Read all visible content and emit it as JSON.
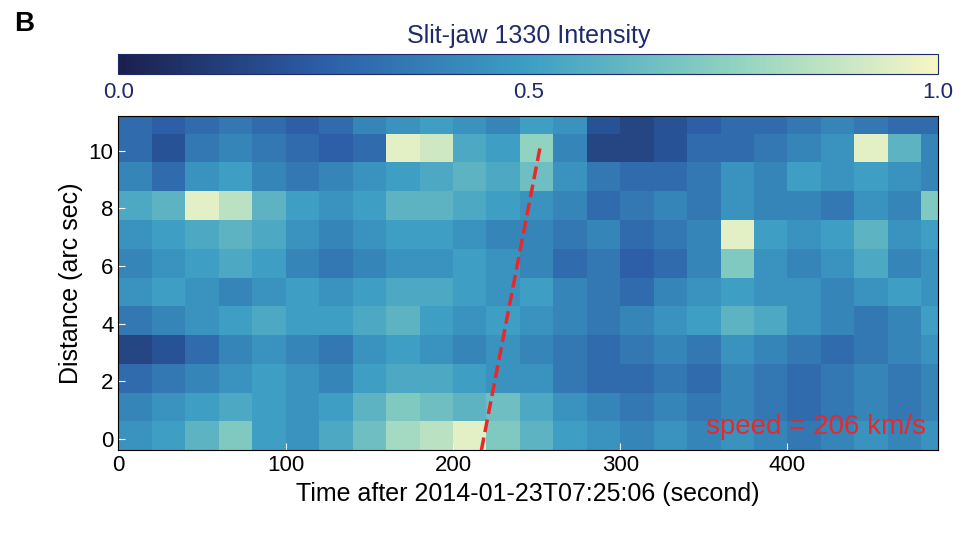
{
  "chart_data": {
    "type": "heatmap",
    "panel_label": "B",
    "xlabel": "Time after 2014-01-23T07:25:06 (second)",
    "ylabel": "Distance (arc sec)",
    "xlim": [
      0,
      490
    ],
    "ylim": [
      -0.4,
      11.2
    ],
    "xticks": [
      0,
      100,
      200,
      300,
      400
    ],
    "yticks": [
      0,
      2,
      4,
      6,
      8,
      10
    ],
    "x_edges": [
      0,
      20,
      40,
      60,
      80,
      100,
      120,
      140,
      160,
      180,
      200,
      220,
      240,
      260,
      280,
      300,
      320,
      340,
      360,
      380,
      400,
      420,
      440,
      460,
      480,
      490
    ],
    "y_edges": [
      -0.4,
      0.6,
      1.6,
      2.6,
      3.6,
      4.6,
      5.6,
      6.6,
      7.6,
      8.6,
      9.6,
      10.6,
      11.2
    ],
    "cells": [
      [
        0.45,
        0.5,
        0.6,
        0.7,
        0.5,
        0.45,
        0.55,
        0.65,
        0.8,
        0.85,
        0.95,
        0.7,
        0.6,
        0.5,
        0.45,
        0.4,
        0.45,
        0.4,
        0.45,
        0.4,
        0.35,
        0.4,
        0.45,
        0.4,
        0.45
      ],
      [
        0.4,
        0.45,
        0.5,
        0.55,
        0.5,
        0.45,
        0.5,
        0.6,
        0.7,
        0.65,
        0.6,
        0.65,
        0.55,
        0.45,
        0.4,
        0.35,
        0.4,
        0.35,
        0.4,
        0.35,
        0.3,
        0.35,
        0.4,
        0.35,
        0.4
      ],
      [
        0.3,
        0.35,
        0.4,
        0.45,
        0.5,
        0.45,
        0.4,
        0.5,
        0.55,
        0.55,
        0.5,
        0.45,
        0.45,
        0.35,
        0.3,
        0.3,
        0.35,
        0.3,
        0.4,
        0.35,
        0.3,
        0.35,
        0.4,
        0.35,
        0.4
      ],
      [
        0.15,
        0.2,
        0.3,
        0.4,
        0.45,
        0.4,
        0.35,
        0.45,
        0.5,
        0.45,
        0.4,
        0.45,
        0.4,
        0.35,
        0.3,
        0.35,
        0.4,
        0.35,
        0.45,
        0.4,
        0.35,
        0.3,
        0.35,
        0.4,
        0.45
      ],
      [
        0.35,
        0.4,
        0.45,
        0.5,
        0.55,
        0.5,
        0.5,
        0.55,
        0.6,
        0.5,
        0.45,
        0.5,
        0.45,
        0.4,
        0.35,
        0.4,
        0.45,
        0.5,
        0.6,
        0.55,
        0.45,
        0.4,
        0.35,
        0.4,
        0.5
      ],
      [
        0.45,
        0.5,
        0.45,
        0.4,
        0.45,
        0.5,
        0.45,
        0.5,
        0.55,
        0.55,
        0.5,
        0.45,
        0.5,
        0.4,
        0.35,
        0.3,
        0.4,
        0.45,
        0.5,
        0.45,
        0.45,
        0.4,
        0.45,
        0.5,
        0.45
      ],
      [
        0.4,
        0.45,
        0.5,
        0.55,
        0.5,
        0.4,
        0.35,
        0.4,
        0.45,
        0.45,
        0.5,
        0.45,
        0.4,
        0.3,
        0.35,
        0.25,
        0.3,
        0.4,
        0.7,
        0.45,
        0.4,
        0.45,
        0.55,
        0.4,
        0.45
      ],
      [
        0.45,
        0.5,
        0.55,
        0.6,
        0.55,
        0.45,
        0.4,
        0.45,
        0.5,
        0.5,
        0.45,
        0.4,
        0.4,
        0.35,
        0.4,
        0.3,
        0.35,
        0.4,
        0.95,
        0.5,
        0.45,
        0.5,
        0.6,
        0.45,
        0.5
      ],
      [
        0.55,
        0.6,
        0.95,
        0.85,
        0.6,
        0.5,
        0.45,
        0.5,
        0.6,
        0.6,
        0.55,
        0.5,
        0.45,
        0.4,
        0.3,
        0.35,
        0.4,
        0.35,
        0.45,
        0.4,
        0.4,
        0.35,
        0.45,
        0.4,
        0.7
      ],
      [
        0.4,
        0.3,
        0.45,
        0.5,
        0.4,
        0.35,
        0.4,
        0.45,
        0.5,
        0.55,
        0.6,
        0.55,
        0.65,
        0.45,
        0.35,
        0.3,
        0.3,
        0.35,
        0.45,
        0.4,
        0.5,
        0.45,
        0.5,
        0.45,
        0.4
      ],
      [
        0.3,
        0.2,
        0.35,
        0.4,
        0.35,
        0.3,
        0.25,
        0.3,
        0.95,
        0.9,
        0.55,
        0.5,
        0.75,
        0.4,
        0.15,
        0.15,
        0.2,
        0.3,
        0.3,
        0.35,
        0.4,
        0.45,
        0.95,
        0.6,
        0.4
      ],
      [
        0.3,
        0.25,
        0.3,
        0.35,
        0.3,
        0.25,
        0.3,
        0.4,
        0.45,
        0.5,
        0.45,
        0.4,
        0.5,
        0.45,
        0.2,
        0.15,
        0.2,
        0.25,
        0.3,
        0.3,
        0.35,
        0.4,
        0.35,
        0.3,
        0.3
      ]
    ],
    "colorbar": {
      "label": "Slit-jaw 1330 Intensity",
      "range": [
        0.0,
        1.0
      ],
      "ticks": [
        {
          "value": 0.0,
          "label": "0.0"
        },
        {
          "value": 0.5,
          "label": "0.5"
        },
        {
          "value": 1.0,
          "label": "1.0"
        }
      ]
    },
    "fit_line": {
      "x": [
        217,
        252
      ],
      "y": [
        -0.4,
        10.1
      ],
      "color": "#e8282b",
      "line_style": "dashed"
    },
    "annotation": {
      "text": "speed = 206 km/s",
      "color": "#e8282b"
    }
  }
}
